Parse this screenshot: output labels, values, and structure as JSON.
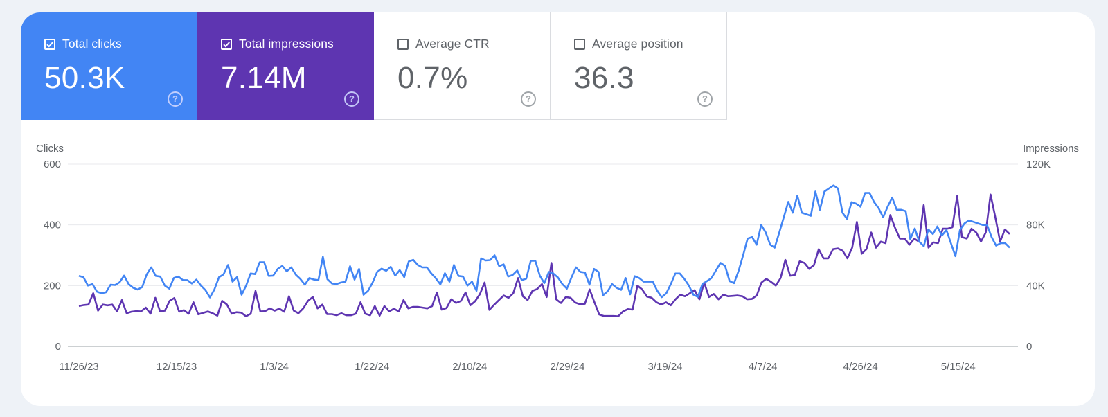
{
  "metrics": [
    {
      "label": "Total clicks",
      "value": "50.3K",
      "checked": true,
      "color": "#4285f4"
    },
    {
      "label": "Total impressions",
      "value": "7.14M",
      "checked": true,
      "color": "#5e35b1"
    },
    {
      "label": "Average CTR",
      "value": "0.7%",
      "checked": false
    },
    {
      "label": "Average position",
      "value": "36.3",
      "checked": false
    }
  ],
  "help_glyph": "?",
  "chart_data": {
    "type": "line",
    "x_ticks": [
      "11/26/23",
      "12/15/23",
      "1/3/24",
      "1/22/24",
      "2/10/24",
      "2/29/24",
      "3/19/24",
      "4/7/24",
      "4/26/24",
      "5/15/24"
    ],
    "x_range": [
      "11/26/23",
      "5/25/24"
    ],
    "y_left": {
      "label": "Clicks",
      "ticks": [
        "0",
        "200",
        "400",
        "600"
      ],
      "range": [
        0,
        600
      ]
    },
    "y_right": {
      "label": "Impressions",
      "ticks": [
        "0",
        "40K",
        "80K",
        "120K"
      ],
      "range": [
        0,
        120000
      ]
    },
    "grid": true,
    "series": [
      {
        "name": "Total clicks",
        "axis": "left",
        "color": "#4285f4",
        "values": [
          232,
          228,
          200,
          205,
          180,
          175,
          178,
          203,
          202,
          211,
          233,
          205,
          193,
          187,
          195,
          237,
          260,
          232,
          230,
          200,
          190,
          225,
          230,
          218,
          218,
          207,
          220,
          200,
          185,
          161,
          188,
          228,
          237,
          268,
          213,
          228,
          170,
          200,
          240,
          238,
          277,
          277,
          232,
          233,
          255,
          265,
          247,
          260,
          236,
          222,
          203,
          225,
          220,
          218,
          295,
          221,
          207,
          205,
          210,
          213,
          264,
          220,
          255,
          170,
          183,
          210,
          245,
          256,
          249,
          262,
          233,
          251,
          228,
          280,
          285,
          268,
          260,
          260,
          240,
          224,
          204,
          241,
          213,
          268,
          232,
          230,
          200,
          213,
          183,
          290,
          283,
          284,
          300,
          264,
          270,
          230,
          235,
          250,
          218,
          223,
          282,
          282,
          233,
          208,
          245,
          240,
          227,
          205,
          190,
          226,
          260,
          245,
          243,
          203,
          255,
          245,
          168,
          181,
          205,
          193,
          186,
          225,
          171,
          231,
          225,
          213,
          213,
          213,
          183,
          162,
          175,
          205,
          240,
          240,
          222,
          200,
          170,
          163,
          205,
          215,
          225,
          250,
          275,
          265,
          215,
          208,
          248,
          300,
          355,
          360,
          335,
          400,
          375,
          335,
          325,
          375,
          425,
          476,
          440,
          496,
          440,
          435,
          430,
          510,
          450,
          510,
          520,
          530,
          520,
          440,
          420,
          475,
          470,
          460,
          505,
          505,
          475,
          455,
          425,
          460,
          490,
          450,
          450,
          445,
          353,
          388,
          345,
          330,
          385,
          370,
          395,
          365,
          383,
          340,
          297,
          383,
          405,
          415,
          410,
          405,
          400,
          400,
          360,
          332,
          340,
          340,
          325
        ]
      },
      {
        "name": "Total impressions",
        "axis": "right",
        "color": "#5e35b1",
        "values": [
          26500,
          27200,
          27500,
          35000,
          23500,
          27500,
          27000,
          27500,
          23000,
          30500,
          21800,
          22800,
          23200,
          23000,
          25500,
          21500,
          32000,
          23000,
          23500,
          30000,
          31800,
          22800,
          23800,
          21500,
          29000,
          21100,
          22000,
          23000,
          21800,
          20200,
          30000,
          27500,
          21500,
          22500,
          22200,
          19800,
          21500,
          36500,
          23000,
          23200,
          25000,
          23500,
          24800,
          22800,
          33000,
          23500,
          21800,
          25000,
          30000,
          32500,
          25000,
          27500,
          21200,
          21200,
          20500,
          21800,
          20500,
          20500,
          21500,
          29000,
          21500,
          20500,
          26500,
          20200,
          26500,
          23000,
          24800,
          23000,
          30500,
          25000,
          26000,
          26000,
          25500,
          25000,
          26500,
          35500,
          24200,
          25200,
          31000,
          28600,
          29800,
          35500,
          27000,
          29700,
          34400,
          42000,
          24000,
          27400,
          30500,
          33500,
          32000,
          35000,
          45000,
          33000,
          30500,
          36500,
          37800,
          41000,
          32500,
          55000,
          31000,
          28500,
          32500,
          32000,
          28800,
          27700,
          28000,
          37500,
          29000,
          21000,
          20000,
          20000,
          20000,
          19800,
          23000,
          24500,
          24200,
          40000,
          37500,
          32800,
          32000,
          29000,
          27500,
          29000,
          27000,
          31000,
          34000,
          33000,
          35000,
          37000,
          31000,
          42000,
          32500,
          34500,
          31000,
          34000,
          33000,
          33200,
          33500,
          33000,
          31000,
          31200,
          33500,
          42000,
          44500,
          42500,
          40000,
          45000,
          57000,
          46500,
          47000,
          56000,
          55000,
          51000,
          53500,
          64000,
          58000,
          58000,
          64000,
          64500,
          63000,
          58000,
          65000,
          82000,
          61000,
          64000,
          75000,
          65000,
          69000,
          68000,
          86500,
          78000,
          71000,
          71000,
          67000,
          71000,
          69000,
          93000,
          65000,
          68500,
          68000,
          77500,
          77500,
          78500,
          99000,
          72000,
          71000,
          77500,
          75000,
          69000,
          75000,
          100000,
          85000,
          69000,
          77000,
          74000
        ]
      }
    ]
  }
}
